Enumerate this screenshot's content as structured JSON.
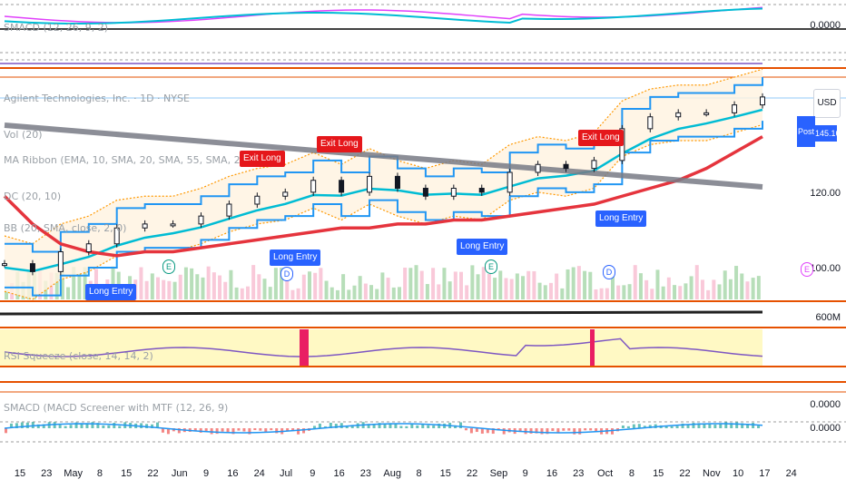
{
  "symbol_title": "Agilent Technologies, Inc. · 1D · NYSE",
  "indicators": {
    "vol": "Vol (20)",
    "ribbon": "MA Ribbon (EMA, 10, SMA, 20, SMA, 55, SMA, 200)",
    "dc": "DC (20, 10)",
    "bb": "BB (20, SMA, close, 2, 0)",
    "smacd": "SMACD (12, 26, 9, 2)",
    "rsi": "RSI Squeeze (close, 14, 14, 2)",
    "smacd_bottom": "SMACD (MACD Screener with MTF (12, 26, 9)"
  },
  "currency": "USD",
  "post_label": "Post",
  "price_badge": "145.16",
  "price_scale": [
    "0.0000",
    "120.00",
    "100.00",
    "600M",
    "0.0000",
    "0.0000"
  ],
  "time_axis": [
    "15",
    "23",
    "May",
    "8",
    "15",
    "22",
    "Jun",
    "9",
    "16",
    "24",
    "Jul",
    "9",
    "16",
    "23",
    "Aug",
    "8",
    "15",
    "22",
    "Sep",
    "9",
    "16",
    "23",
    "Oct",
    "8",
    "15",
    "22",
    "Nov",
    "10",
    "17",
    "24"
  ],
  "signals": [
    {
      "kind": "exit",
      "label": "Exit Long"
    },
    {
      "kind": "exit",
      "label": "Exit Long"
    },
    {
      "kind": "exit",
      "label": "Exit Long"
    },
    {
      "kind": "entry",
      "label": "Long Entry"
    },
    {
      "kind": "entry",
      "label": "Long Entry"
    },
    {
      "kind": "entry",
      "label": "Long Entry"
    },
    {
      "kind": "entry",
      "label": "Long Entry"
    }
  ],
  "events": [
    "E",
    "D",
    "E",
    "D",
    "E"
  ],
  "colors": {
    "ma200": "#e5343d",
    "trendline": "#787b86",
    "donchian": "#2196f3",
    "bb_band": "#ff9800",
    "ema_cyan": "#00bcd4",
    "volume_up": "#a5d6a7",
    "volume_down": "#f8bbd0",
    "rsi_bg": "#fff9c4",
    "rsi_line": "#7e57c2",
    "squeeze": "#e91e63",
    "level_line": "#e65100"
  },
  "chart_data": {
    "type": "line",
    "title": "Agilent Technologies, Inc. · 1D · NYSE",
    "x": [
      "15",
      "23",
      "May",
      "8",
      "15",
      "22",
      "Jun",
      "9",
      "16",
      "24",
      "Jul",
      "9",
      "16",
      "23",
      "Aug",
      "8",
      "15",
      "22",
      "Sep",
      "9",
      "16",
      "23",
      "Oct",
      "8",
      "15",
      "22",
      "Nov",
      "10"
    ],
    "series": [
      {
        "name": "close",
        "values": [
          103,
          101,
          106,
          108,
          112,
          113,
          113,
          115,
          118,
          120,
          121,
          124,
          121,
          125,
          122,
          120,
          122,
          121,
          126,
          128,
          127,
          129,
          137,
          140,
          141,
          141,
          143,
          145
        ]
      },
      {
        "name": "SMA 200",
        "values": [
          120,
          113,
          108,
          106,
          105,
          106,
          106,
          107,
          108,
          109,
          110,
          111,
          112,
          112,
          113,
          113,
          114,
          114,
          115,
          116,
          117,
          118,
          120,
          122,
          124,
          127,
          131,
          135
        ]
      }
    ],
    "ylim": [
      94,
      150
    ],
    "grid": true,
    "legend": "top-left"
  }
}
